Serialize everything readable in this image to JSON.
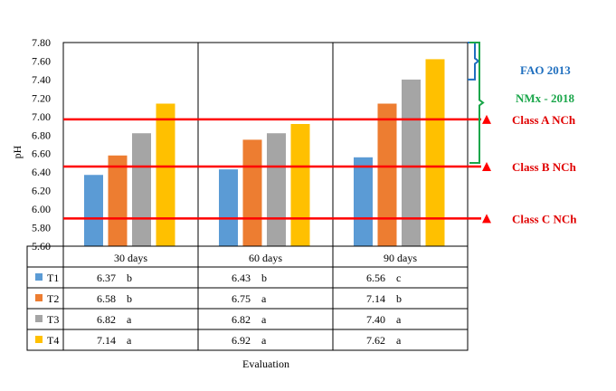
{
  "chart_data": {
    "type": "bar",
    "ylabel": "pH",
    "xlabel": "Evaluation",
    "ylim": [
      5.6,
      7.8
    ],
    "yticks": [
      "7.80",
      "7.60",
      "7.40",
      "7.20",
      "7.00",
      "6.80",
      "6.60",
      "6.40",
      "6.20",
      "6.00",
      "5.80",
      "5.60"
    ],
    "categories": [
      "30 days",
      "60 days",
      "90 days"
    ],
    "series": [
      {
        "name": "T1",
        "color": "#5b9bd5",
        "values": [
          6.37,
          6.43,
          6.56
        ],
        "groups": [
          "b",
          "b",
          "c"
        ]
      },
      {
        "name": "T2",
        "color": "#ed7d31",
        "values": [
          6.58,
          6.75,
          7.14
        ],
        "groups": [
          "b",
          "a",
          "b"
        ]
      },
      {
        "name": "T3",
        "color": "#a5a5a5",
        "values": [
          6.82,
          6.82,
          7.4
        ],
        "groups": [
          "a",
          "a",
          "a"
        ]
      },
      {
        "name": "T4",
        "color": "#ffc000",
        "values": [
          7.14,
          6.92,
          7.62
        ],
        "groups": [
          "a",
          "a",
          "a"
        ]
      }
    ],
    "table_values": [
      [
        "6.37",
        "6.43",
        "6.56"
      ],
      [
        "6.58",
        "6.75",
        "7.14"
      ],
      [
        "6.82",
        "6.82",
        "7.40"
      ],
      [
        "7.14",
        "6.92",
        "7.62"
      ]
    ],
    "reference_lines": [
      {
        "label": "Class A NCh",
        "value": 6.97,
        "color": "#ff0000"
      },
      {
        "label": "Class B NCh",
        "value": 6.46,
        "color": "#ff0000"
      },
      {
        "label": "Class C NCh",
        "value": 5.9,
        "color": "#ff0000"
      }
    ],
    "ranges": [
      {
        "label": "FAO 2013",
        "from": 7.4,
        "to": 7.8,
        "color": "#1f6fbf"
      },
      {
        "label": "NMx - 2018",
        "from": 6.5,
        "to": 7.8,
        "color": "#1aa64a"
      }
    ]
  }
}
